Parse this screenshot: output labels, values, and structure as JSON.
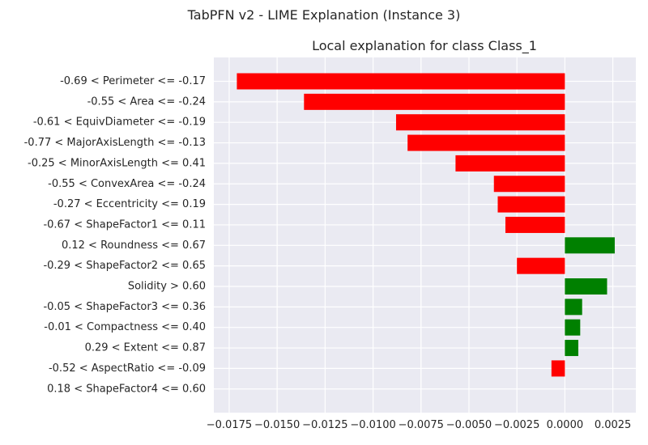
{
  "figure_title": "TabPFN v2 - LIME Explanation (Instance 3)",
  "chart_data": {
    "type": "bar",
    "orientation": "horizontal",
    "title": "Local explanation for class Class_1",
    "xlabel": "",
    "ylabel": "",
    "xlim": [
      -0.0183,
      0.0037
    ],
    "xticks": [
      "-0.0175",
      "-0.0150",
      "-0.0125",
      "-0.0100",
      "-0.0075",
      "-0.0050",
      "-0.0025",
      "0.0000",
      "0.0025"
    ],
    "grid": true,
    "colors": {
      "positive": "#008000",
      "negative": "#ff0000",
      "background": "#eaeaf2",
      "grid": "#ffffff"
    },
    "categories": [
      "-0.69 < Perimeter <= -0.17",
      "-0.55 < Area <= -0.24",
      "-0.61 < EquivDiameter <= -0.19",
      "-0.77 < MajorAxisLength <= -0.13",
      "-0.25 < MinorAxisLength <= 0.41",
      "-0.55 < ConvexArea <= -0.24",
      "-0.27 < Eccentricity <= 0.19",
      "-0.67 < ShapeFactor1 <= 0.11",
      "0.12 < Roundness <= 0.67",
      "-0.29 < ShapeFactor2 <= 0.65",
      "Solidity > 0.60",
      "-0.05 < ShapeFactor3 <= 0.36",
      "-0.01 < Compactness <= 0.40",
      "0.29 < Extent <= 0.87",
      "-0.52 < AspectRatio <= -0.09",
      "0.18 < ShapeFactor4 <= 0.60"
    ],
    "values": [
      -0.0171,
      -0.0136,
      -0.0088,
      -0.0082,
      -0.0057,
      -0.0037,
      -0.0035,
      -0.0031,
      0.0026,
      -0.0025,
      0.0022,
      0.0009,
      0.0008,
      0.0007,
      -0.0007,
      0.0
    ]
  }
}
